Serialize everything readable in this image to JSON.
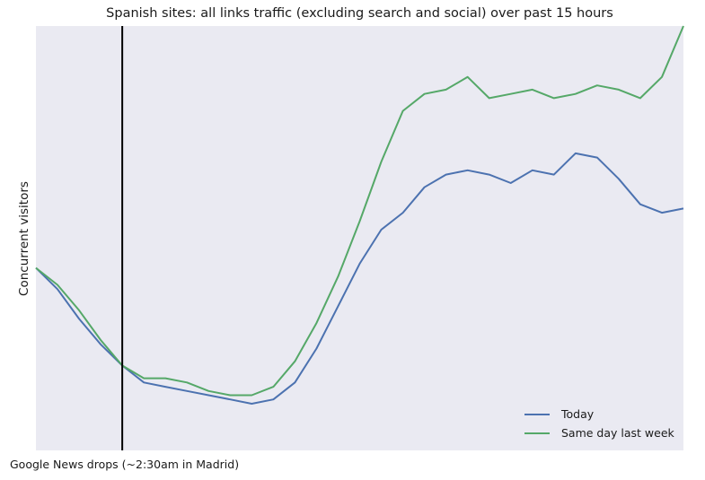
{
  "chart_data": {
    "type": "line",
    "title": "Spanish sites: all links traffic (excluding search and social) over past 15 hours",
    "xlabel": "",
    "ylabel": "Concurrent visitors",
    "xlim": [
      0,
      15
    ],
    "ylim": [
      0,
      100
    ],
    "grid": false,
    "legend_position": "bottom-right",
    "x": [
      0,
      0.5,
      1,
      1.5,
      2,
      2.5,
      3,
      3.5,
      4,
      4.5,
      5,
      5.5,
      6,
      6.5,
      7,
      7.5,
      8,
      8.5,
      9,
      9.5,
      10,
      10.5,
      11,
      11.5,
      12,
      12.5,
      13,
      13.5,
      14,
      14.5,
      15
    ],
    "series": [
      {
        "name": "Today",
        "color": "#4c72b0",
        "values": [
          43,
          38,
          31,
          25,
          20,
          16,
          15,
          14,
          13,
          12,
          11,
          12,
          16,
          24,
          34,
          44,
          52,
          56,
          62,
          65,
          66,
          65,
          63,
          66,
          65,
          70,
          69,
          64,
          58,
          56,
          57
        ]
      },
      {
        "name": "Same day last week",
        "color": "#55a868",
        "values": [
          43,
          39,
          33,
          26,
          20,
          17,
          17,
          16,
          14,
          13,
          13,
          15,
          21,
          30,
          41,
          54,
          68,
          80,
          84,
          85,
          88,
          83,
          84,
          85,
          83,
          84,
          86,
          85,
          83,
          88,
          100
        ]
      }
    ],
    "annotation": {
      "x": 2,
      "label": "Google News drops (~2:30am in Madrid)"
    }
  }
}
